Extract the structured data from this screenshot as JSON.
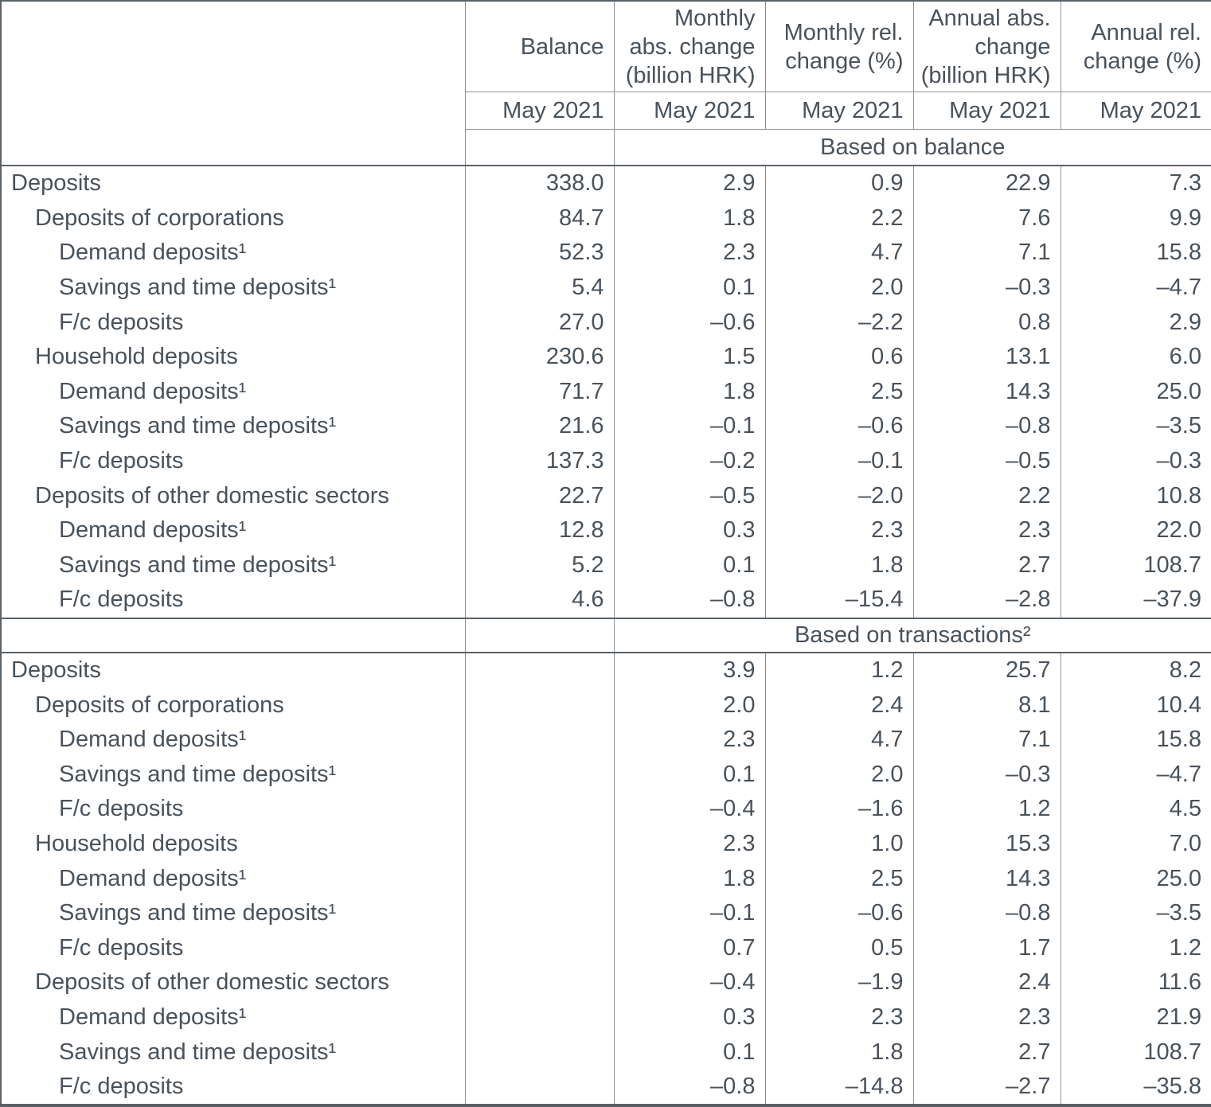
{
  "table": {
    "period": "May 2021",
    "text_color": "#49525a",
    "grid_color": "#8d9298",
    "frame_color": "#5a6167",
    "columns": [
      {
        "label": "Balance",
        "lines": [
          "Balance"
        ]
      },
      {
        "label": "Monthly abs. change (billion HRK)",
        "lines": [
          "Monthly",
          "abs. change",
          "(billion HRK)"
        ]
      },
      {
        "label": "Monthly rel. change (%)",
        "lines": [
          "Monthly rel.",
          "change (%)"
        ]
      },
      {
        "label": "Annual abs. change (billion HRK)",
        "lines": [
          "Annual abs.",
          "change",
          "(billion HRK)"
        ]
      },
      {
        "label": "Annual rel. change (%)",
        "lines": [
          "Annual rel.",
          "change (%)"
        ]
      }
    ],
    "sections": [
      {
        "band": "Based on balance",
        "rows": [
          {
            "label": "Deposits",
            "indent": 0,
            "values": [
              "338.0",
              "2.9",
              "0.9",
              "22.9",
              "7.3"
            ]
          },
          {
            "label": "Deposits of corporations",
            "indent": 1,
            "values": [
              "84.7",
              "1.8",
              "2.2",
              "7.6",
              "9.9"
            ]
          },
          {
            "label": "Demand deposits¹",
            "indent": 2,
            "values": [
              "52.3",
              "2.3",
              "4.7",
              "7.1",
              "15.8"
            ]
          },
          {
            "label": "Savings and time deposits¹",
            "indent": 2,
            "values": [
              "5.4",
              "0.1",
              "2.0",
              "–0.3",
              "–4.7"
            ]
          },
          {
            "label": "F/c deposits",
            "indent": 2,
            "values": [
              "27.0",
              "–0.6",
              "–2.2",
              "0.8",
              "2.9"
            ]
          },
          {
            "label": "Household deposits",
            "indent": 1,
            "values": [
              "230.6",
              "1.5",
              "0.6",
              "13.1",
              "6.0"
            ]
          },
          {
            "label": "Demand deposits¹",
            "indent": 2,
            "values": [
              "71.7",
              "1.8",
              "2.5",
              "14.3",
              "25.0"
            ]
          },
          {
            "label": "Savings and time deposits¹",
            "indent": 2,
            "values": [
              "21.6",
              "–0.1",
              "–0.6",
              "–0.8",
              "–3.5"
            ]
          },
          {
            "label": "F/c deposits",
            "indent": 2,
            "values": [
              "137.3",
              "–0.2",
              "–0.1",
              "–0.5",
              "–0.3"
            ]
          },
          {
            "label": "Deposits of other domestic sectors",
            "indent": 1,
            "values": [
              "22.7",
              "–0.5",
              "–2.0",
              "2.2",
              "10.8"
            ]
          },
          {
            "label": "Demand deposits¹",
            "indent": 2,
            "values": [
              "12.8",
              "0.3",
              "2.3",
              "2.3",
              "22.0"
            ]
          },
          {
            "label": "Savings and time deposits¹",
            "indent": 2,
            "values": [
              "5.2",
              "0.1",
              "1.8",
              "2.7",
              "108.7"
            ]
          },
          {
            "label": "F/c deposits",
            "indent": 2,
            "values": [
              "4.6",
              "–0.8",
              "–15.4",
              "–2.8",
              "–37.9"
            ]
          }
        ]
      },
      {
        "band": "Based on transactions²",
        "rows": [
          {
            "label": "Deposits",
            "indent": 0,
            "values": [
              "",
              "3.9",
              "1.2",
              "25.7",
              "8.2"
            ]
          },
          {
            "label": "Deposits of corporations",
            "indent": 1,
            "values": [
              "",
              "2.0",
              "2.4",
              "8.1",
              "10.4"
            ]
          },
          {
            "label": "Demand deposits¹",
            "indent": 2,
            "values": [
              "",
              "2.3",
              "4.7",
              "7.1",
              "15.8"
            ]
          },
          {
            "label": "Savings and time deposits¹",
            "indent": 2,
            "values": [
              "",
              "0.1",
              "2.0",
              "–0.3",
              "–4.7"
            ]
          },
          {
            "label": "F/c deposits",
            "indent": 2,
            "values": [
              "",
              "–0.4",
              "–1.6",
              "1.2",
              "4.5"
            ]
          },
          {
            "label": "Household deposits",
            "indent": 1,
            "values": [
              "",
              "2.3",
              "1.0",
              "15.3",
              "7.0"
            ]
          },
          {
            "label": "Demand deposits¹",
            "indent": 2,
            "values": [
              "",
              "1.8",
              "2.5",
              "14.3",
              "25.0"
            ]
          },
          {
            "label": "Savings and time deposits¹",
            "indent": 2,
            "values": [
              "",
              "–0.1",
              "–0.6",
              "–0.8",
              "–3.5"
            ]
          },
          {
            "label": "F/c deposits",
            "indent": 2,
            "values": [
              "",
              "0.7",
              "0.5",
              "1.7",
              "1.2"
            ]
          },
          {
            "label": "Deposits of other domestic sectors",
            "indent": 1,
            "values": [
              "",
              "–0.4",
              "–1.9",
              "2.4",
              "11.6"
            ]
          },
          {
            "label": "Demand deposits¹",
            "indent": 2,
            "values": [
              "",
              "0.3",
              "2.3",
              "2.3",
              "21.9"
            ]
          },
          {
            "label": "Savings and time deposits¹",
            "indent": 2,
            "values": [
              "",
              "0.1",
              "1.8",
              "2.7",
              "108.7"
            ]
          },
          {
            "label": "F/c deposits",
            "indent": 2,
            "values": [
              "",
              "–0.8",
              "–14.8",
              "–2.7",
              "–35.8"
            ]
          }
        ]
      }
    ]
  }
}
